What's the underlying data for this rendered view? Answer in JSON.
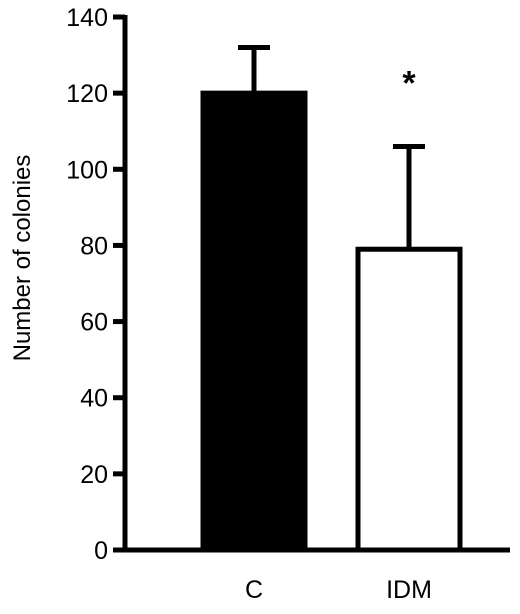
{
  "chart_data": {
    "type": "bar",
    "ylabel": "Number of colonies",
    "ylim": [
      0,
      140
    ],
    "yticks": [
      0,
      20,
      40,
      60,
      80,
      100,
      120,
      140
    ],
    "categories": [
      "C",
      "IDM"
    ],
    "values": [
      120,
      79
    ],
    "errors": [
      12,
      27
    ],
    "bar_colors": [
      "#000000",
      "#ffffff"
    ],
    "annotations": [
      {
        "category": "IDM",
        "text": "*"
      }
    ],
    "grid": false,
    "legend": "none"
  }
}
